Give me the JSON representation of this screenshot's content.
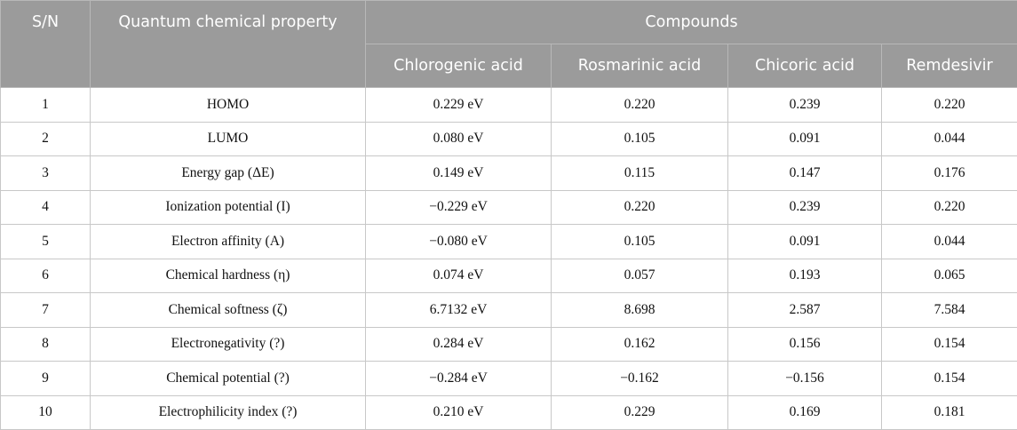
{
  "headers": {
    "sn": "S/N",
    "property": "Quantum chemical property",
    "compounds": "Compounds",
    "compound_names": [
      "Chlorogenic acid",
      "Rosmarinic acid",
      "Chicoric acid",
      "Remdesivir"
    ]
  },
  "rows": [
    {
      "sn": "1",
      "property": "HOMO",
      "values": [
        "0.229 eV",
        "0.220",
        "0.239",
        "0.220"
      ]
    },
    {
      "sn": "2",
      "property": "LUMO",
      "values": [
        "0.080 eV",
        "0.105",
        "0.091",
        "0.044"
      ]
    },
    {
      "sn": "3",
      "property": "Energy gap (ΔE)",
      "values": [
        "0.149 eV",
        "0.115",
        "0.147",
        "0.176"
      ]
    },
    {
      "sn": "4",
      "property": "Ionization potential (I)",
      "values": [
        "−0.229 eV",
        "0.220",
        "0.239",
        "0.220"
      ]
    },
    {
      "sn": "5",
      "property": "Electron affinity (A)",
      "values": [
        "−0.080 eV",
        "0.105",
        "0.091",
        "0.044"
      ]
    },
    {
      "sn": "6",
      "property": "Chemical hardness (η)",
      "values": [
        "0.074 eV",
        "0.057",
        "0.193",
        "0.065"
      ]
    },
    {
      "sn": "7",
      "property": "Chemical softness (ζ)",
      "values": [
        "6.7132 eV",
        "8.698",
        "2.587",
        "7.584"
      ]
    },
    {
      "sn": "8",
      "property": "Electronegativity (?)",
      "values": [
        "0.284 eV",
        "0.162",
        "0.156",
        "0.154"
      ]
    },
    {
      "sn": "9",
      "property": "Chemical potential (?)",
      "values": [
        "−0.284 eV",
        "−0.162",
        "−0.156",
        "0.154"
      ]
    },
    {
      "sn": "10",
      "property": "Electrophilicity index (?)",
      "values": [
        "0.210 eV",
        "0.229",
        "0.169",
        "0.181"
      ]
    }
  ]
}
